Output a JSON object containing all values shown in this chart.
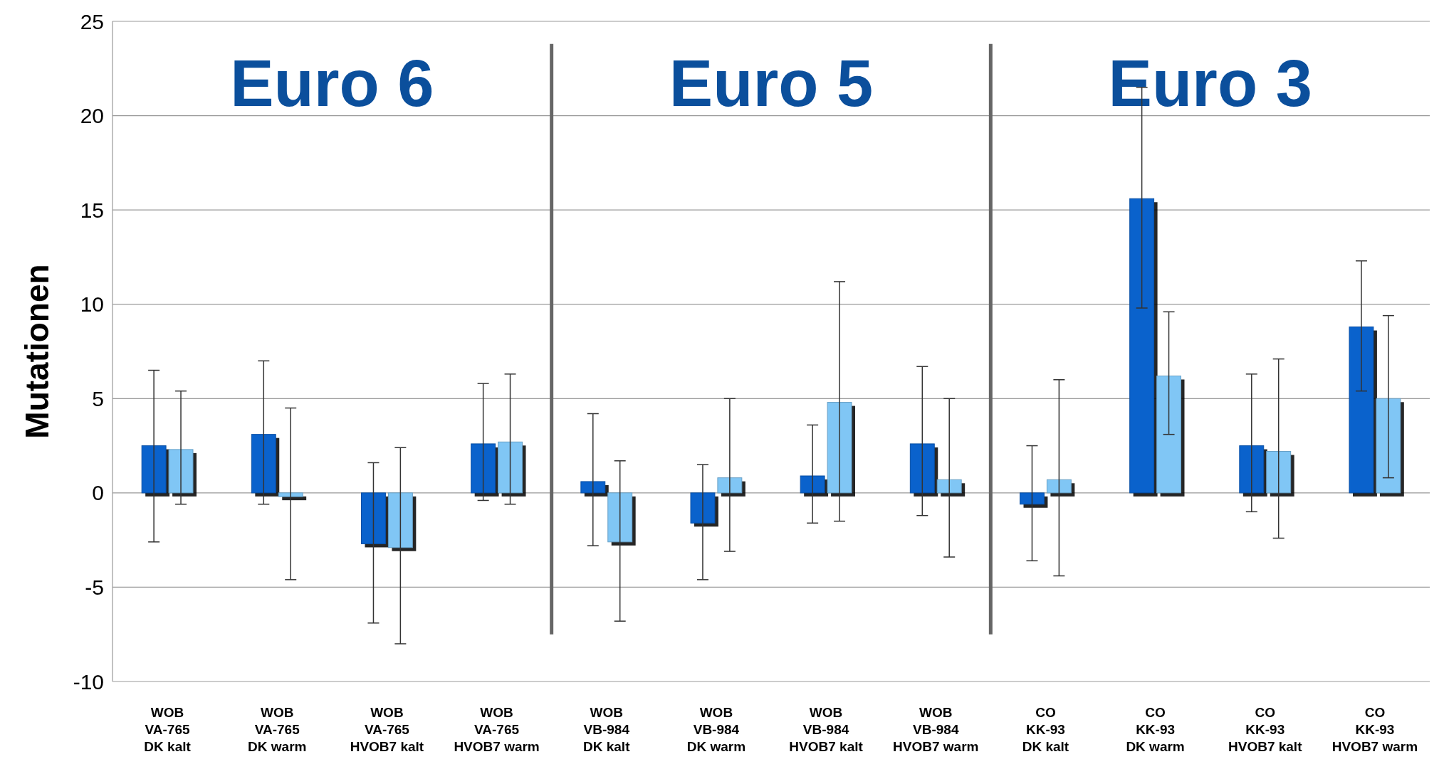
{
  "chart_data": {
    "type": "bar",
    "ylabel": "Mutationen",
    "categories": [
      "WOB\nVA-765\nDK kalt",
      "WOB\nVA-765\nDK warm",
      "WOB\nVA-765\nHVOB7 kalt",
      "WOB\nVA-765\nHVOB7 warm",
      "WOB\nVB-984\nDK kalt",
      "WOB\nVB-984\nDK warm",
      "WOB\nVB-984\nHVOB7 kalt",
      "WOB\nVB-984\nHVOB7 warm",
      "CO\nKK-93\nDK kalt",
      "CO\nKK-93\nDK warm",
      "CO\nKK-93\nHVOB7 kalt",
      "CO\nKK-93\nHVOB7 warm"
    ],
    "series": [
      {
        "color": "#0a62cc",
        "values": [
          2.5,
          3.1,
          -2.7,
          2.6,
          0.6,
          -1.6,
          0.9,
          2.6,
          -0.6,
          15.6,
          2.5,
          8.8
        ],
        "errors": [
          [
            -2.6,
            6.5
          ],
          [
            -0.6,
            7.0
          ],
          [
            -6.9,
            1.6
          ],
          [
            -0.4,
            5.8
          ],
          [
            -2.8,
            4.2
          ],
          [
            -4.6,
            1.5
          ],
          [
            -1.6,
            3.6
          ],
          [
            -1.2,
            6.7
          ],
          [
            -3.6,
            2.5
          ],
          [
            9.8,
            21.5
          ],
          [
            -1.0,
            6.3
          ],
          [
            5.4,
            12.3
          ]
        ]
      },
      {
        "color": "#80c6f5",
        "values": [
          2.3,
          -0.2,
          -2.9,
          2.7,
          -2.6,
          0.8,
          4.8,
          0.7,
          0.7,
          6.2,
          2.2,
          5.0
        ],
        "errors": [
          [
            -0.6,
            5.4
          ],
          [
            -4.6,
            4.5
          ],
          [
            -8.0,
            2.4
          ],
          [
            -0.6,
            6.3
          ],
          [
            -6.8,
            1.7
          ],
          [
            -3.1,
            5.0
          ],
          [
            -1.5,
            11.2
          ],
          [
            -3.4,
            5.0
          ],
          [
            -4.4,
            6.0
          ],
          [
            3.1,
            9.6
          ],
          [
            -2.4,
            7.1
          ],
          [
            0.8,
            9.4
          ]
        ]
      }
    ],
    "ylim": [
      -10,
      25
    ],
    "yticks": [
      -10,
      -5,
      0,
      5,
      10,
      15,
      20,
      25
    ],
    "grid": "y",
    "annotations": [
      "Euro 6",
      "Euro 5",
      "Euro 3"
    ]
  }
}
